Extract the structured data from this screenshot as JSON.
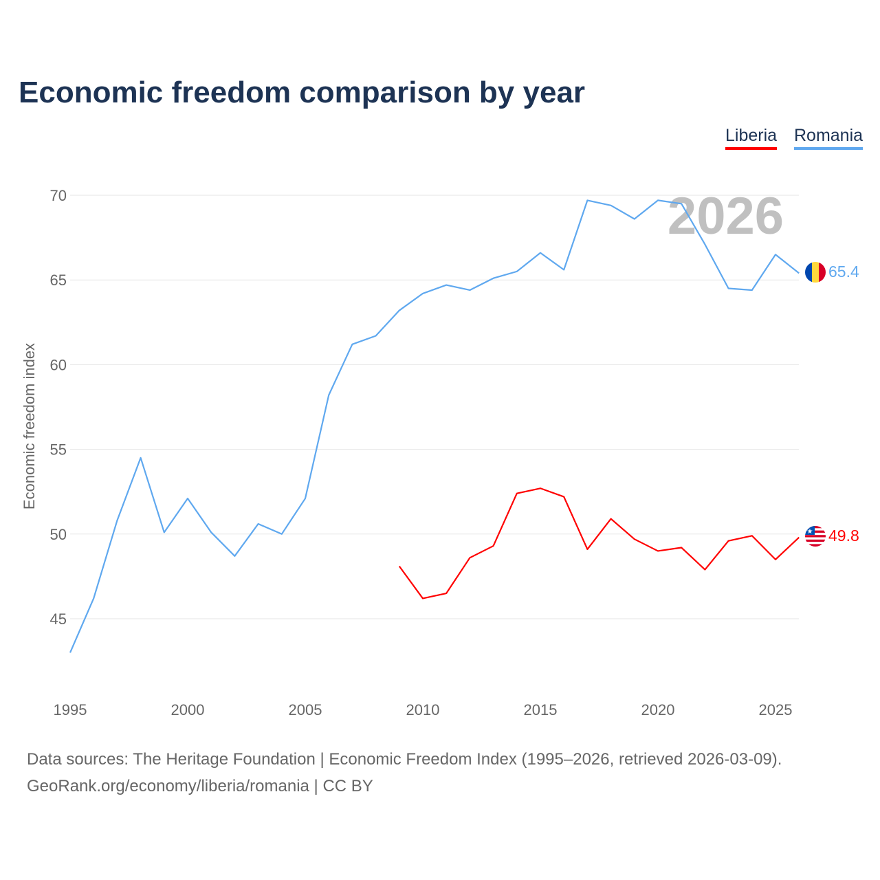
{
  "title": "Economic freedom comparison by year",
  "footer": {
    "line1": "Data sources: The Heritage Foundation | Economic Freedom Index (1995–2026, retrieved 2026-03-09).",
    "line2": "GeoRank.org/economy/liberia/romania | CC BY"
  },
  "chart_data": {
    "type": "line",
    "title": "Economic freedom comparison by year",
    "xlabel": "",
    "ylabel": "Economic freedom index",
    "xlim": [
      1995,
      2026
    ],
    "ylim": [
      42,
      72
    ],
    "yticks": [
      45,
      50,
      55,
      60,
      65,
      70
    ],
    "xticks": [
      1995,
      2000,
      2005,
      2010,
      2015,
      2020,
      2025
    ],
    "grid": true,
    "legend": "top-right",
    "watermark_year": "2026",
    "series": [
      {
        "name": "Liberia",
        "color": "#ff0000",
        "end_label": "49.8",
        "x": [
          2009,
          2010,
          2011,
          2012,
          2013,
          2014,
          2015,
          2016,
          2017,
          2018,
          2019,
          2020,
          2021,
          2022,
          2023,
          2024,
          2025,
          2026
        ],
        "values": [
          48.1,
          46.2,
          46.5,
          48.6,
          49.3,
          52.4,
          52.7,
          52.2,
          49.1,
          50.9,
          49.7,
          49.0,
          49.2,
          47.9,
          49.6,
          49.9,
          48.5,
          49.8
        ]
      },
      {
        "name": "Romania",
        "color": "#5fa8ef",
        "end_label": "65.4",
        "x": [
          1995,
          1996,
          1997,
          1998,
          1999,
          2000,
          2001,
          2002,
          2003,
          2004,
          2005,
          2006,
          2007,
          2008,
          2009,
          2010,
          2011,
          2012,
          2013,
          2014,
          2015,
          2016,
          2017,
          2018,
          2019,
          2020,
          2021,
          2022,
          2023,
          2024,
          2025,
          2026
        ],
        "values": [
          43.0,
          46.2,
          50.8,
          54.5,
          50.1,
          52.1,
          50.1,
          48.7,
          50.6,
          50.0,
          52.1,
          58.2,
          61.2,
          61.7,
          63.2,
          64.2,
          64.7,
          64.4,
          65.1,
          65.5,
          66.6,
          65.6,
          69.7,
          69.4,
          68.6,
          69.7,
          69.5,
          67.1,
          64.5,
          64.4,
          66.5,
          65.4
        ]
      }
    ]
  }
}
